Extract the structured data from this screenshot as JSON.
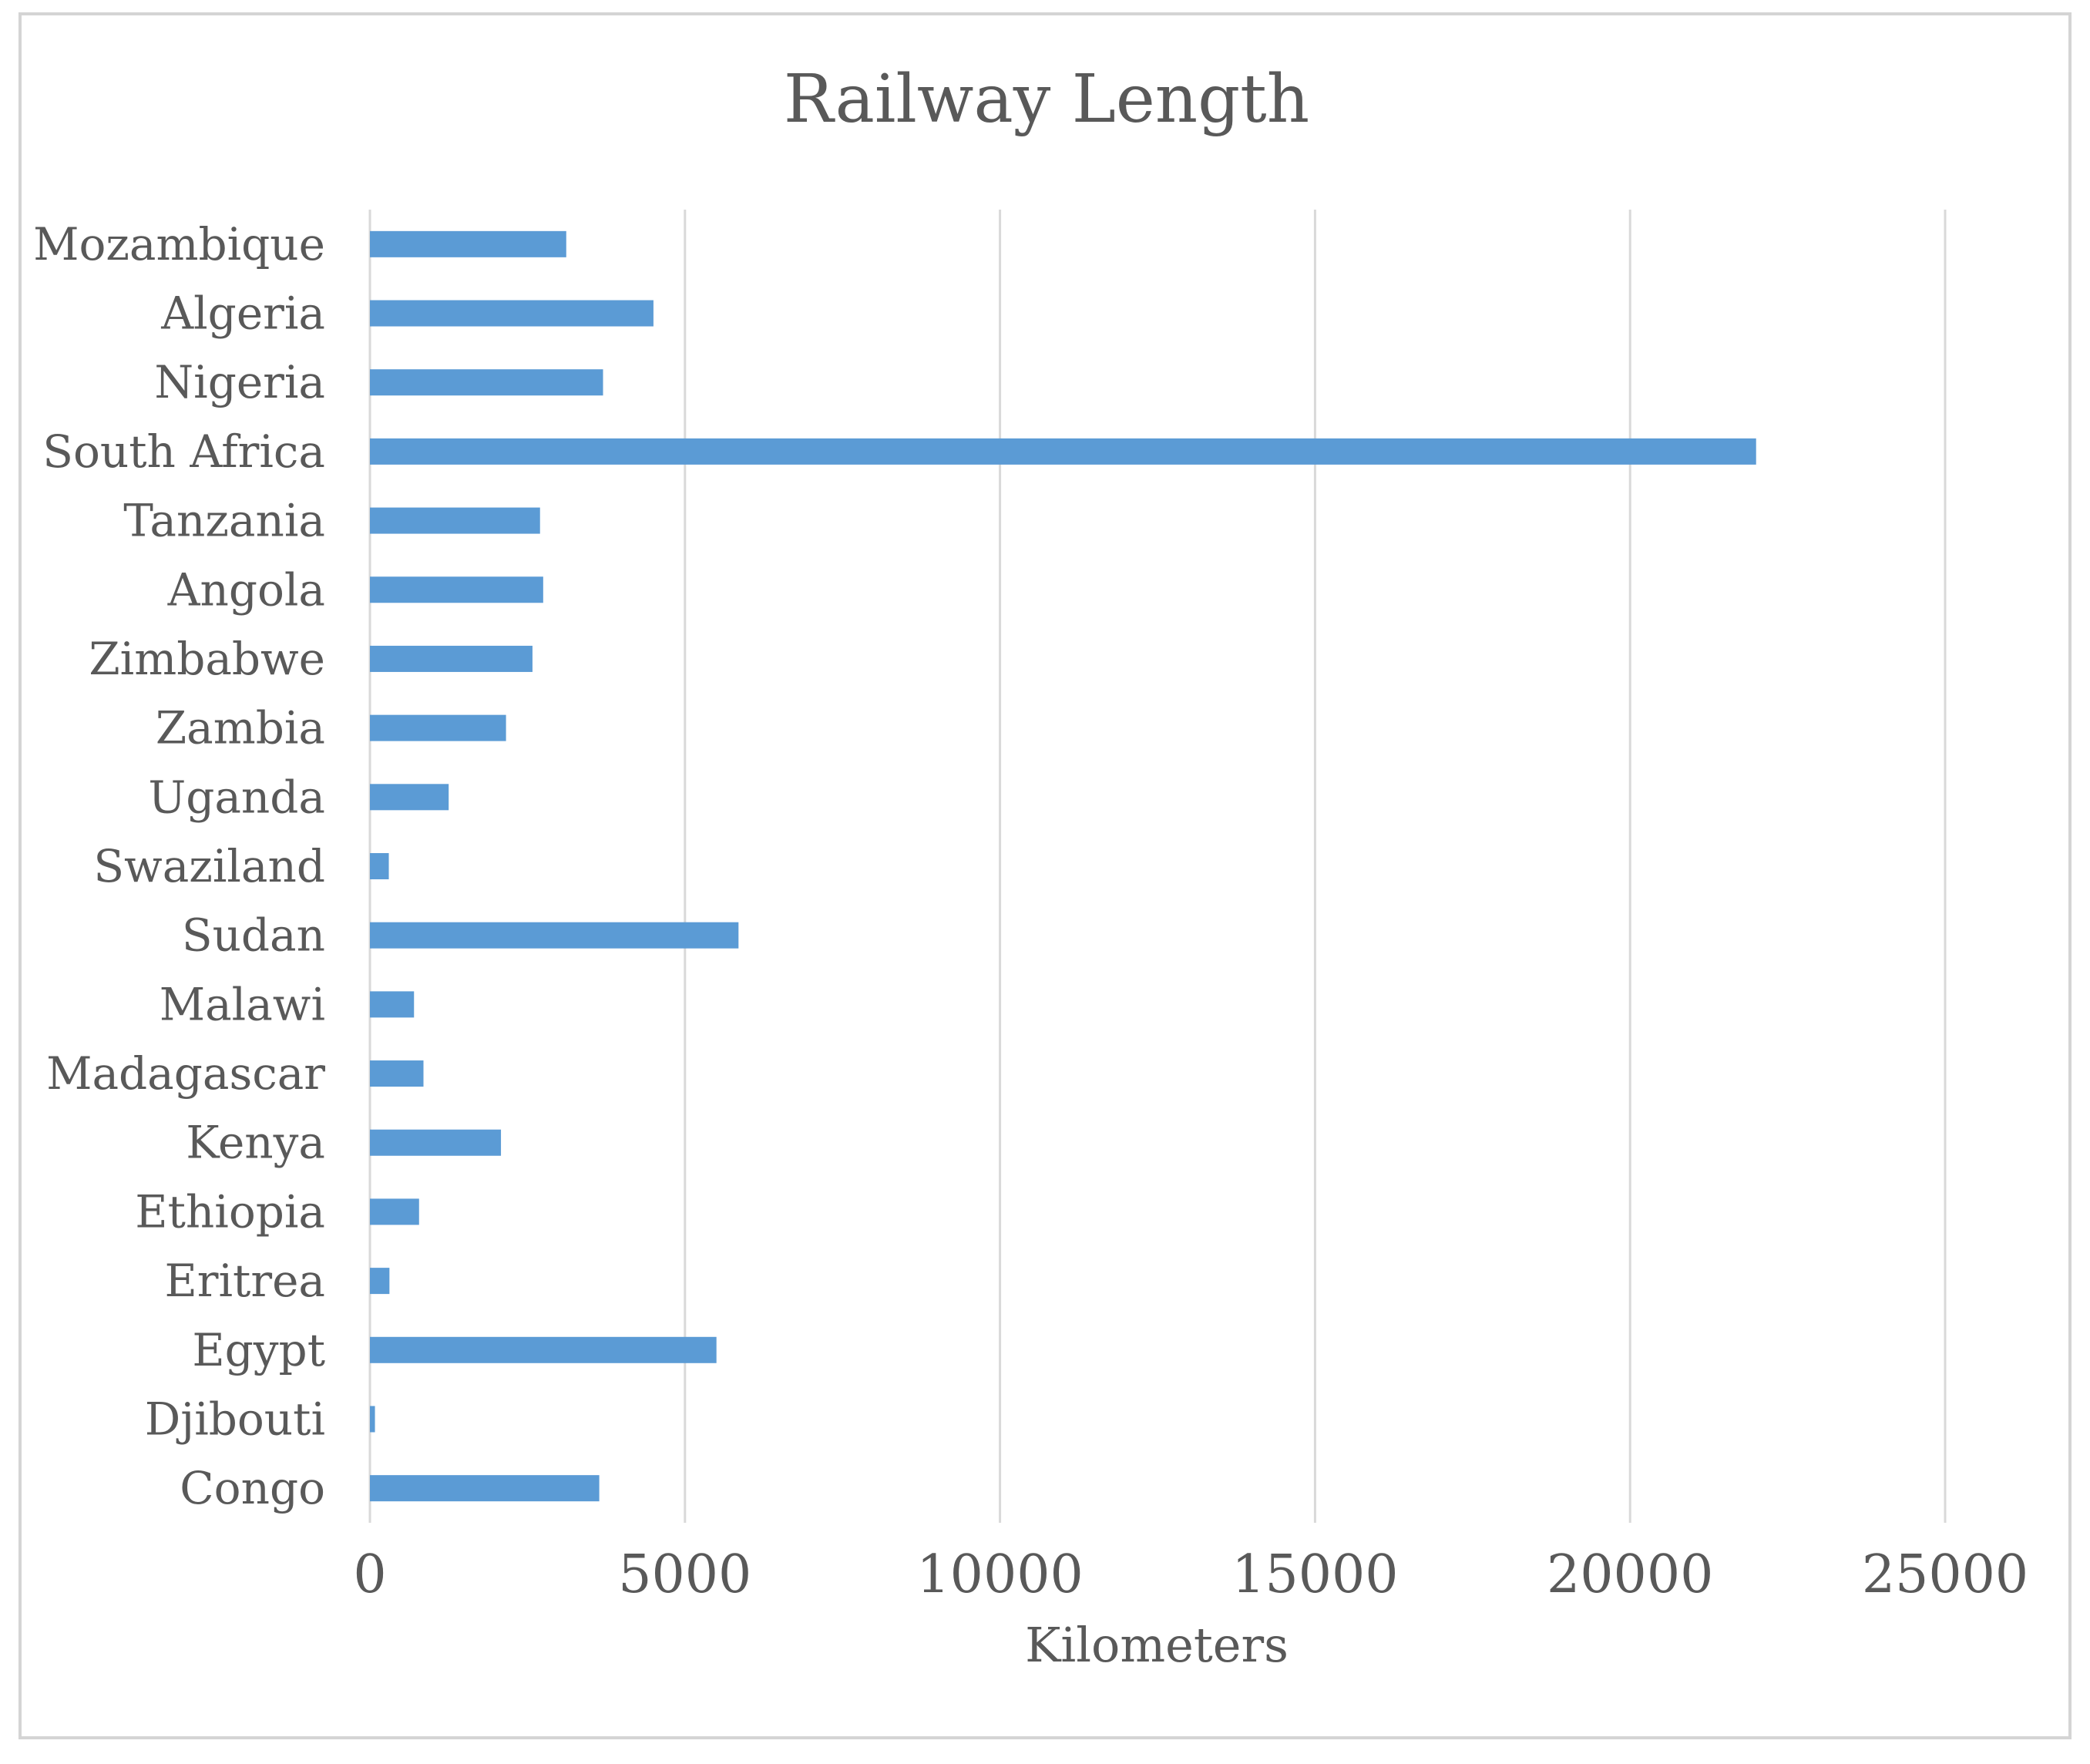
{
  "chart_data": {
    "type": "bar",
    "orientation": "horizontal",
    "title": "Railway Length",
    "xlabel": "Kilometers",
    "ylabel": "",
    "xlim": [
      0,
      25000
    ],
    "ticks": [
      "0",
      "5000",
      "10000",
      "15000",
      "20000",
      "25000"
    ],
    "grid": true,
    "legend": "none",
    "bar_color": "#5b9bd5",
    "categories": [
      "Mozambique",
      "Algeria",
      "Nigeria",
      "South Africa",
      "Tanzania",
      "Angola",
      "Zimbabwe",
      "Zambia",
      "Uganda",
      "Swaziland",
      "Sudan",
      "Malawi",
      "Madagascar",
      "Kenya",
      "Ethiopia",
      "Eritrea",
      "Egypt",
      "Djibouti",
      "Congo"
    ],
    "values": [
      3116,
      4500,
      3700,
      22000,
      2700,
      2750,
      2580,
      2160,
      1250,
      300,
      5850,
      700,
      850,
      2080,
      780,
      310,
      5500,
      80,
      3640
    ]
  }
}
